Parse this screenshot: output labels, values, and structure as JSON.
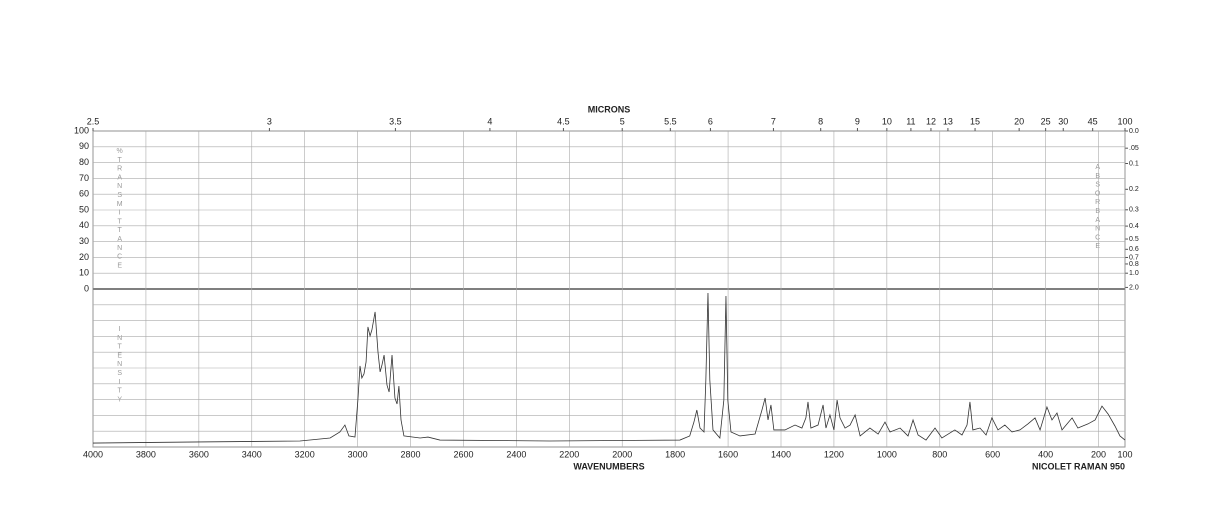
{
  "chart_data": {
    "type": "line",
    "top_axis_label": "MICRONS",
    "x_label": "WAVENUMBERS",
    "caption": "NICOLET RAMAN 950",
    "transmittance_label": "%TRANSMITTANCE",
    "absorbance_label": "ABSORBANCE",
    "intensity_label": "INTENSITY",
    "xlim": [
      4000,
      100
    ],
    "xticks": [
      4000,
      3800,
      3600,
      3400,
      3200,
      3000,
      2800,
      2600,
      2400,
      2200,
      2000,
      1800,
      1600,
      1400,
      1200,
      1000,
      800,
      600,
      400,
      200,
      100
    ],
    "micron_ticks": [
      2.5,
      3,
      3.5,
      4,
      4.5,
      5,
      5.5,
      6,
      7,
      8,
      9,
      10,
      11,
      12,
      13,
      15,
      20,
      25,
      30,
      45,
      100
    ],
    "ylim": [
      0,
      100
    ],
    "yticks": [
      0,
      10,
      20,
      30,
      40,
      50,
      60,
      70,
      80,
      90,
      100
    ],
    "absorbance_ticks": [
      {
        "value": 0,
        "label": "0.0"
      },
      {
        "value": 0.05,
        "label": ".05"
      },
      0.1,
      0.2,
      0.3,
      0.4,
      0.5,
      0.6,
      0.7,
      0.8,
      {
        "value": 1,
        "label": "1.0"
      },
      {
        "value": 2,
        "label": "2.0"
      }
    ],
    "intensity_lim": [
      0,
      100
    ],
    "grid": true,
    "x": [
      4000,
      3596,
      3218,
      3104,
      3067,
      3048,
      3033,
      3010,
      2999,
      2991,
      2984,
      2976,
      2968,
      2961,
      2953,
      2946,
      2934,
      2923,
      2915,
      2908,
      2900,
      2889,
      2881,
      2870,
      2859,
      2851,
      2844,
      2836,
      2825,
      2764,
      2734,
      2689,
      2273,
      1782,
      1745,
      1729,
      1718,
      1706,
      1691,
      1684,
      1676,
      1669,
      1657,
      1631,
      1616,
      1608,
      1601,
      1589,
      1555,
      1498,
      1472,
      1460,
      1449,
      1438,
      1427,
      1385,
      1347,
      1321,
      1306,
      1298,
      1287,
      1260,
      1241,
      1230,
      1215,
      1200,
      1188,
      1177,
      1158,
      1139,
      1120,
      1101,
      1064,
      1033,
      1007,
      988,
      950,
      920,
      901,
      882,
      852,
      818,
      792,
      743,
      716,
      697,
      686,
      675,
      648,
      625,
      603,
      580,
      554,
      527,
      497,
      467,
      440,
      421,
      395,
      376,
      357,
      338,
      300,
      278,
      240,
      213,
      187,
      164,
      138,
      119,
      100
    ],
    "series": [
      {
        "color": "#333333",
        "values": [
          2.5,
          3.2,
          3.8,
          5.7,
          9.5,
          13.9,
          7,
          6.3,
          29.7,
          51.3,
          43.7,
          46.2,
          53.8,
          76,
          70.3,
          74.1,
          85.5,
          60.1,
          47.5,
          51.9,
          58.2,
          39.2,
          34.8,
          58.2,
          31,
          27.2,
          38.6,
          17.1,
          7,
          5.7,
          6.3,
          4.4,
          3.8,
          4.4,
          7,
          15.8,
          23.4,
          12,
          9.5,
          42.4,
          97.5,
          42.4,
          10.8,
          5.7,
          29.7,
          95.6,
          29.7,
          9.5,
          7,
          8.2,
          23.4,
          31,
          17.1,
          26.6,
          10.8,
          10.8,
          13.9,
          12,
          18.4,
          28.5,
          12,
          13.9,
          26.6,
          12,
          20.3,
          10.8,
          29.7,
          18.4,
          12,
          13.9,
          20.3,
          7,
          12,
          8.2,
          15.8,
          9.5,
          12,
          7,
          17.1,
          7.6,
          4.4,
          12,
          5.7,
          10.8,
          7.6,
          13.9,
          28.5,
          10.8,
          12,
          7.6,
          18.4,
          10.8,
          13.9,
          9.5,
          10.8,
          14.6,
          18.4,
          10.8,
          25.3,
          17.1,
          21.5,
          10.8,
          18.4,
          12,
          14.6,
          17.1,
          25.9,
          20.9,
          13.3,
          7,
          4.4
        ]
      }
    ]
  }
}
